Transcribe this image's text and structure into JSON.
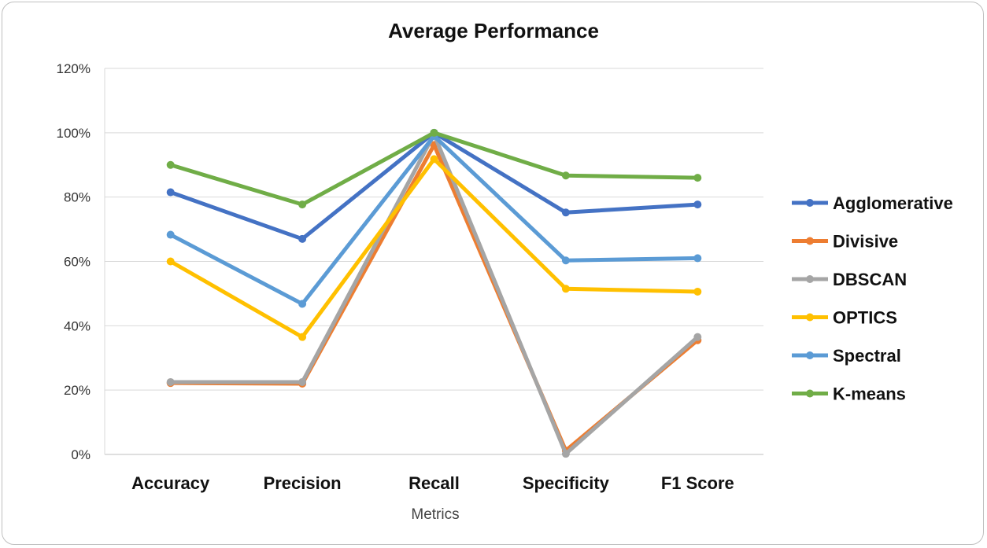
{
  "chart_data": {
    "type": "line",
    "title": "Average Performance",
    "xlabel": "Metrics",
    "ylabel": "",
    "categories": [
      "Accuracy",
      "Precision",
      "Recall",
      "Specificity",
      "F1 Score"
    ],
    "ylim": [
      0,
      1.2
    ],
    "yticks": [
      0,
      0.2,
      0.4,
      0.6,
      0.8,
      1.0,
      1.2
    ],
    "ytick_labels": [
      "0%",
      "20%",
      "40%",
      "60%",
      "80%",
      "100%",
      "120%"
    ],
    "grid": true,
    "legend": "right",
    "series": [
      {
        "name": "Agglomerative",
        "color": "#4472C4",
        "values": [
          0.815,
          0.67,
          1.0,
          0.752,
          0.777
        ]
      },
      {
        "name": "Divisive",
        "color": "#ED7D31",
        "values": [
          0.222,
          0.22,
          0.962,
          0.012,
          0.355
        ]
      },
      {
        "name": "DBSCAN",
        "color": "#A5A5A5",
        "values": [
          0.225,
          0.225,
          0.995,
          0.002,
          0.365
        ]
      },
      {
        "name": "OPTICS",
        "color": "#FFC000",
        "values": [
          0.6,
          0.365,
          0.918,
          0.515,
          0.506
        ]
      },
      {
        "name": "Spectral",
        "color": "#5B9BD5",
        "values": [
          0.683,
          0.468,
          0.99,
          0.603,
          0.61
        ]
      },
      {
        "name": "K-means",
        "color": "#70AD47",
        "values": [
          0.9,
          0.777,
          1.0,
          0.867,
          0.86
        ]
      }
    ]
  }
}
